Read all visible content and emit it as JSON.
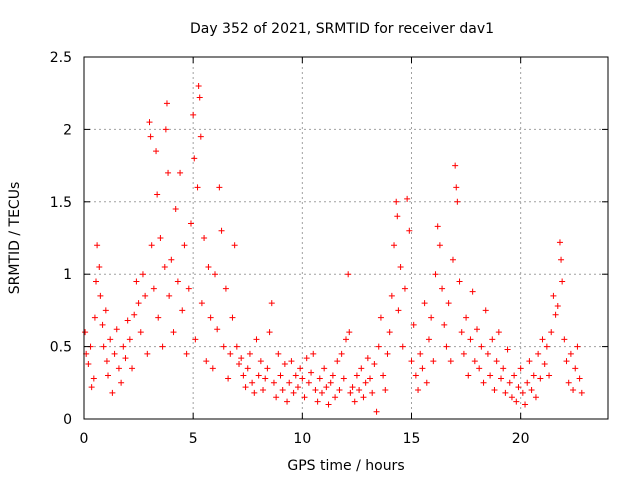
{
  "chart_data": {
    "type": "scatter",
    "title": "Day 352 of 2021, SRMTID for receiver dav1",
    "xlabel": "GPS time / hours",
    "ylabel": "SRMTID / TECUs",
    "xlim": [
      0,
      24
    ],
    "ylim": [
      0,
      2.5
    ],
    "xticks": [
      0,
      5,
      10,
      15,
      20
    ],
    "yticks": [
      0,
      0.5,
      1,
      1.5,
      2,
      2.5
    ],
    "grid": true,
    "marker": "+",
    "marker_color": "#ff0000",
    "series": [
      {
        "name": "SRMTID",
        "points": [
          [
            0.05,
            0.6
          ],
          [
            0.1,
            0.45
          ],
          [
            0.2,
            0.38
          ],
          [
            0.3,
            0.5
          ],
          [
            0.35,
            0.22
          ],
          [
            0.45,
            0.28
          ],
          [
            0.5,
            0.7
          ],
          [
            0.55,
            0.95
          ],
          [
            0.6,
            1.2
          ],
          [
            0.7,
            1.05
          ],
          [
            0.75,
            0.85
          ],
          [
            0.85,
            0.65
          ],
          [
            0.9,
            0.5
          ],
          [
            1.0,
            0.75
          ],
          [
            1.05,
            0.4
          ],
          [
            1.1,
            0.3
          ],
          [
            1.2,
            0.55
          ],
          [
            1.3,
            0.18
          ],
          [
            1.4,
            0.45
          ],
          [
            1.5,
            0.62
          ],
          [
            1.6,
            0.35
          ],
          [
            1.7,
            0.25
          ],
          [
            1.8,
            0.5
          ],
          [
            1.9,
            0.42
          ],
          [
            2.0,
            0.68
          ],
          [
            2.1,
            0.55
          ],
          [
            2.2,
            0.35
          ],
          [
            2.3,
            0.72
          ],
          [
            2.4,
            0.95
          ],
          [
            2.5,
            0.8
          ],
          [
            2.6,
            0.6
          ],
          [
            2.7,
            1.0
          ],
          [
            2.8,
            0.85
          ],
          [
            2.9,
            0.45
          ],
          [
            3.0,
            2.05
          ],
          [
            3.05,
            1.95
          ],
          [
            3.1,
            1.2
          ],
          [
            3.2,
            0.9
          ],
          [
            3.3,
            1.85
          ],
          [
            3.35,
            1.55
          ],
          [
            3.4,
            0.7
          ],
          [
            3.5,
            1.25
          ],
          [
            3.6,
            0.5
          ],
          [
            3.7,
            1.05
          ],
          [
            3.75,
            2.0
          ],
          [
            3.8,
            2.18
          ],
          [
            3.85,
            1.7
          ],
          [
            3.9,
            0.85
          ],
          [
            4.0,
            1.1
          ],
          [
            4.1,
            0.6
          ],
          [
            4.2,
            1.45
          ],
          [
            4.3,
            0.95
          ],
          [
            4.4,
            1.7
          ],
          [
            4.5,
            0.75
          ],
          [
            4.6,
            1.2
          ],
          [
            4.7,
            0.45
          ],
          [
            4.8,
            0.9
          ],
          [
            4.9,
            1.35
          ],
          [
            5.0,
            2.1
          ],
          [
            5.05,
            1.8
          ],
          [
            5.1,
            0.55
          ],
          [
            5.2,
            1.6
          ],
          [
            5.25,
            2.3
          ],
          [
            5.3,
            2.22
          ],
          [
            5.35,
            1.95
          ],
          [
            5.4,
            0.8
          ],
          [
            5.5,
            1.25
          ],
          [
            5.6,
            0.4
          ],
          [
            5.7,
            1.05
          ],
          [
            5.8,
            0.7
          ],
          [
            5.9,
            0.35
          ],
          [
            6.0,
            1.0
          ],
          [
            6.1,
            0.62
          ],
          [
            6.2,
            1.6
          ],
          [
            6.3,
            1.3
          ],
          [
            6.4,
            0.5
          ],
          [
            6.5,
            0.9
          ],
          [
            6.6,
            0.28
          ],
          [
            6.7,
            0.45
          ],
          [
            6.8,
            0.7
          ],
          [
            6.9,
            1.2
          ],
          [
            7.0,
            0.5
          ],
          [
            7.1,
            0.38
          ],
          [
            7.2,
            0.42
          ],
          [
            7.3,
            0.3
          ],
          [
            7.4,
            0.22
          ],
          [
            7.5,
            0.35
          ],
          [
            7.6,
            0.45
          ],
          [
            7.7,
            0.25
          ],
          [
            7.8,
            0.18
          ],
          [
            7.9,
            0.55
          ],
          [
            8.0,
            0.3
          ],
          [
            8.1,
            0.4
          ],
          [
            8.2,
            0.2
          ],
          [
            8.3,
            0.28
          ],
          [
            8.4,
            0.35
          ],
          [
            8.5,
            0.6
          ],
          [
            8.6,
            0.8
          ],
          [
            8.7,
            0.25
          ],
          [
            8.8,
            0.15
          ],
          [
            8.9,
            0.45
          ],
          [
            9.0,
            0.3
          ],
          [
            9.1,
            0.2
          ],
          [
            9.2,
            0.38
          ],
          [
            9.3,
            0.12
          ],
          [
            9.4,
            0.25
          ],
          [
            9.5,
            0.4
          ],
          [
            9.6,
            0.18
          ],
          [
            9.7,
            0.3
          ],
          [
            9.8,
            0.22
          ],
          [
            9.9,
            0.35
          ],
          [
            10.0,
            0.28
          ],
          [
            10.1,
            0.15
          ],
          [
            10.2,
            0.42
          ],
          [
            10.3,
            0.25
          ],
          [
            10.4,
            0.32
          ],
          [
            10.5,
            0.45
          ],
          [
            10.6,
            0.2
          ],
          [
            10.7,
            0.12
          ],
          [
            10.8,
            0.28
          ],
          [
            10.9,
            0.18
          ],
          [
            11.0,
            0.35
          ],
          [
            11.1,
            0.22
          ],
          [
            11.2,
            0.1
          ],
          [
            11.3,
            0.25
          ],
          [
            11.4,
            0.3
          ],
          [
            11.5,
            0.15
          ],
          [
            11.6,
            0.4
          ],
          [
            11.7,
            0.2
          ],
          [
            11.8,
            0.45
          ],
          [
            11.9,
            0.28
          ],
          [
            12.0,
            0.55
          ],
          [
            12.1,
            1.0
          ],
          [
            12.15,
            0.6
          ],
          [
            12.2,
            0.18
          ],
          [
            12.3,
            0.22
          ],
          [
            12.4,
            0.12
          ],
          [
            12.5,
            0.3
          ],
          [
            12.6,
            0.2
          ],
          [
            12.7,
            0.35
          ],
          [
            12.8,
            0.15
          ],
          [
            12.9,
            0.25
          ],
          [
            13.0,
            0.42
          ],
          [
            13.1,
            0.28
          ],
          [
            13.2,
            0.18
          ],
          [
            13.3,
            0.38
          ],
          [
            13.4,
            0.05
          ],
          [
            13.5,
            0.5
          ],
          [
            13.6,
            0.7
          ],
          [
            13.7,
            0.3
          ],
          [
            13.8,
            0.2
          ],
          [
            13.9,
            0.45
          ],
          [
            14.0,
            0.6
          ],
          [
            14.1,
            0.85
          ],
          [
            14.2,
            1.2
          ],
          [
            14.3,
            1.5
          ],
          [
            14.35,
            1.4
          ],
          [
            14.4,
            0.75
          ],
          [
            14.5,
            1.05
          ],
          [
            14.6,
            0.5
          ],
          [
            14.7,
            0.9
          ],
          [
            14.8,
            1.52
          ],
          [
            14.9,
            1.3
          ],
          [
            15.0,
            0.4
          ],
          [
            15.1,
            0.65
          ],
          [
            15.2,
            0.3
          ],
          [
            15.3,
            0.2
          ],
          [
            15.4,
            0.45
          ],
          [
            15.5,
            0.35
          ],
          [
            15.6,
            0.8
          ],
          [
            15.7,
            0.25
          ],
          [
            15.8,
            0.55
          ],
          [
            15.9,
            0.7
          ],
          [
            16.0,
            0.4
          ],
          [
            16.1,
            1.0
          ],
          [
            16.2,
            1.33
          ],
          [
            16.3,
            1.2
          ],
          [
            16.4,
            0.9
          ],
          [
            16.5,
            0.65
          ],
          [
            16.6,
            0.5
          ],
          [
            16.7,
            0.8
          ],
          [
            16.8,
            0.4
          ],
          [
            16.9,
            1.1
          ],
          [
            17.0,
            1.75
          ],
          [
            17.05,
            1.6
          ],
          [
            17.1,
            1.5
          ],
          [
            17.2,
            0.95
          ],
          [
            17.3,
            0.6
          ],
          [
            17.4,
            0.45
          ],
          [
            17.5,
            0.7
          ],
          [
            17.6,
            0.3
          ],
          [
            17.7,
            0.55
          ],
          [
            17.8,
            0.88
          ],
          [
            17.9,
            0.4
          ],
          [
            18.0,
            0.62
          ],
          [
            18.1,
            0.35
          ],
          [
            18.2,
            0.5
          ],
          [
            18.3,
            0.25
          ],
          [
            18.4,
            0.75
          ],
          [
            18.5,
            0.45
          ],
          [
            18.6,
            0.3
          ],
          [
            18.7,
            0.55
          ],
          [
            18.8,
            0.2
          ],
          [
            18.9,
            0.4
          ],
          [
            19.0,
            0.6
          ],
          [
            19.1,
            0.28
          ],
          [
            19.2,
            0.35
          ],
          [
            19.3,
            0.18
          ],
          [
            19.4,
            0.48
          ],
          [
            19.5,
            0.25
          ],
          [
            19.6,
            0.15
          ],
          [
            19.7,
            0.3
          ],
          [
            19.8,
            0.12
          ],
          [
            19.9,
            0.22
          ],
          [
            20.0,
            0.35
          ],
          [
            20.1,
            0.18
          ],
          [
            20.2,
            0.1
          ],
          [
            20.3,
            0.25
          ],
          [
            20.4,
            0.4
          ],
          [
            20.5,
            0.2
          ],
          [
            20.6,
            0.3
          ],
          [
            20.7,
            0.15
          ],
          [
            20.8,
            0.45
          ],
          [
            20.9,
            0.28
          ],
          [
            21.0,
            0.55
          ],
          [
            21.1,
            0.38
          ],
          [
            21.2,
            0.5
          ],
          [
            21.3,
            0.3
          ],
          [
            21.4,
            0.6
          ],
          [
            21.5,
            0.85
          ],
          [
            21.6,
            0.72
          ],
          [
            21.7,
            0.78
          ],
          [
            21.8,
            1.22
          ],
          [
            21.85,
            1.1
          ],
          [
            21.9,
            0.95
          ],
          [
            22.0,
            0.55
          ],
          [
            22.1,
            0.4
          ],
          [
            22.2,
            0.25
          ],
          [
            22.3,
            0.45
          ],
          [
            22.4,
            0.2
          ],
          [
            22.5,
            0.35
          ],
          [
            22.6,
            0.5
          ],
          [
            22.7,
            0.28
          ],
          [
            22.8,
            0.18
          ]
        ]
      }
    ]
  }
}
